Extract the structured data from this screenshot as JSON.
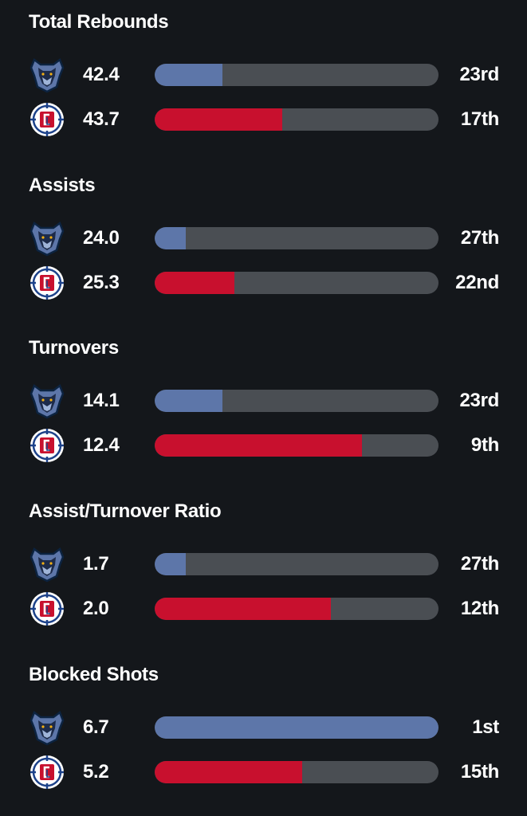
{
  "colors": {
    "background": "#14171b",
    "grizzlies": "#5d76a9",
    "clippers": "#c8102e",
    "track": "#4a4e53",
    "text": "#ffffff"
  },
  "teams": [
    {
      "key": "grizzlies",
      "icon": "grizzlies-logo-icon"
    },
    {
      "key": "clippers",
      "icon": "clippers-logo-icon"
    }
  ],
  "stats": [
    {
      "title": "Total Rebounds",
      "rows": [
        {
          "team": "grizzlies",
          "value": "42.4",
          "rank": "23rd",
          "fill": 0.24
        },
        {
          "team": "clippers",
          "value": "43.7",
          "rank": "17th",
          "fill": 0.45
        }
      ]
    },
    {
      "title": "Assists",
      "rows": [
        {
          "team": "grizzlies",
          "value": "24.0",
          "rank": "27th",
          "fill": 0.11
        },
        {
          "team": "clippers",
          "value": "25.3",
          "rank": "22nd",
          "fill": 0.28
        }
      ]
    },
    {
      "title": "Turnovers",
      "rows": [
        {
          "team": "grizzlies",
          "value": "14.1",
          "rank": "23rd",
          "fill": 0.24
        },
        {
          "team": "clippers",
          "value": "12.4",
          "rank": "9th",
          "fill": 0.73
        }
      ]
    },
    {
      "title": "Assist/Turnover Ratio",
      "rows": [
        {
          "team": "grizzlies",
          "value": "1.7",
          "rank": "27th",
          "fill": 0.11
        },
        {
          "team": "clippers",
          "value": "2.0",
          "rank": "12th",
          "fill": 0.62
        }
      ]
    },
    {
      "title": "Blocked Shots",
      "rows": [
        {
          "team": "grizzlies",
          "value": "6.7",
          "rank": "1st",
          "fill": 1.0
        },
        {
          "team": "clippers",
          "value": "5.2",
          "rank": "15th",
          "fill": 0.52
        }
      ]
    }
  ]
}
